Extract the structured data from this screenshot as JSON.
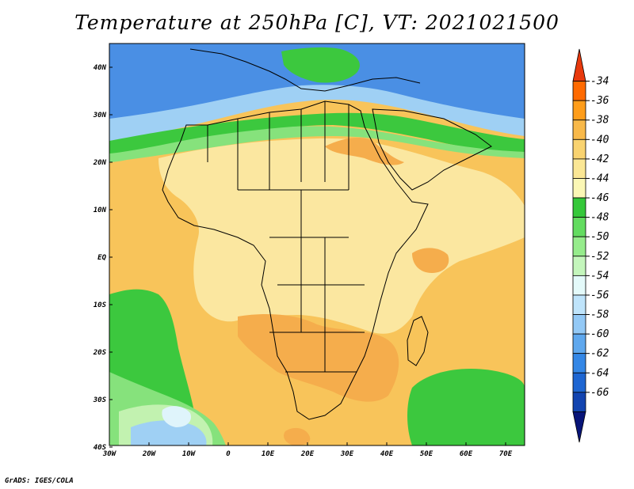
{
  "title": "Temperature at 250hPa [C], VT: 2021021500",
  "credit": "GrADS: IGES/COLA",
  "lon_ticks": [
    "30W",
    "20W",
    "10W",
    "0",
    "10E",
    "20E",
    "30E",
    "40E",
    "50E",
    "60E",
    "70E"
  ],
  "lat_ticks": [
    "40N",
    "30N",
    "20N",
    "10N",
    "EQ",
    "10S",
    "20S",
    "30S",
    "40S"
  ],
  "colorbar": {
    "labels": [
      "-34",
      "-36",
      "-38",
      "-40",
      "-42",
      "-44",
      "-46",
      "-48",
      "-50",
      "-52",
      "-54",
      "-56",
      "-58",
      "-60",
      "-62",
      "-64",
      "-66"
    ],
    "colors": [
      "#e8390d",
      "#ff6a00",
      "#ff9d1a",
      "#f8b94a",
      "#f9d370",
      "#fbe795",
      "#fbf7b5",
      "#35c83a",
      "#63dc60",
      "#96ec8c",
      "#c4f6bc",
      "#e4fafa",
      "#bfe4fb",
      "#93c9f6",
      "#5fa8ee",
      "#3487e6",
      "#1e66d2",
      "#1244b0",
      "#081478"
    ]
  },
  "map_colors": {
    "ocean_base": "#f8c45a",
    "light_tan": "#fbe7a0",
    "orange": "#f5ad4c",
    "green": "#3cc83e",
    "light_green": "#86e27c",
    "pale_green": "#c2f2b0",
    "light_blue": "#9fd0f4",
    "blue": "#4a8fe4",
    "pale_blue": "#dff4fb"
  }
}
